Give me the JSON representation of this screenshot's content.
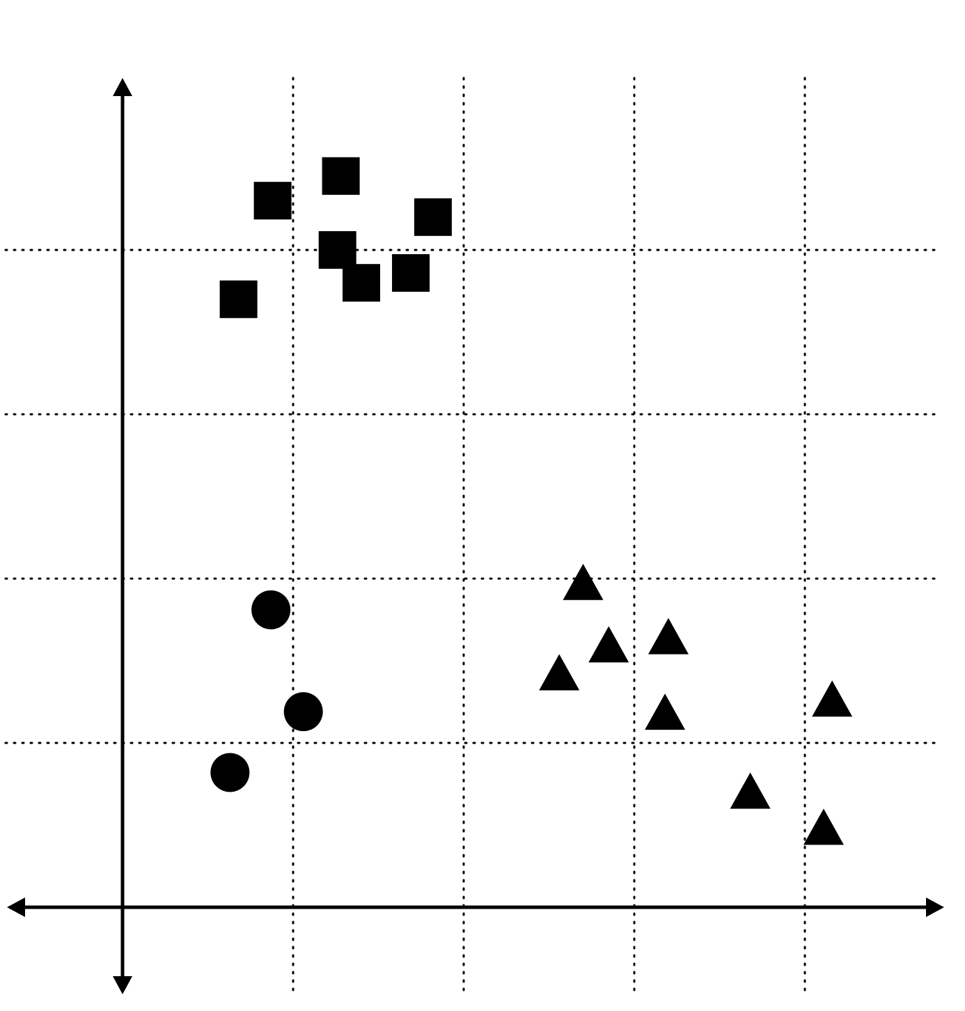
{
  "chart_data": {
    "type": "scatter",
    "title": "",
    "xlabel": "",
    "ylabel": "",
    "xlim": [
      0,
      4.8
    ],
    "ylim": [
      0,
      4.8
    ],
    "grid": true,
    "grid_style": "dotted",
    "x_gridlines": [
      1,
      2,
      3,
      4
    ],
    "y_gridlines": [
      1,
      2,
      3,
      4
    ],
    "axes_style": "arrows-both-ends",
    "colors": {
      "marks": "#000000",
      "grid": "#000000",
      "background": "#ffffff"
    },
    "series": [
      {
        "marker": "square",
        "points": [
          {
            "x": 0.88,
            "y": 4.3
          },
          {
            "x": 1.28,
            "y": 4.45
          },
          {
            "x": 1.26,
            "y": 4.0
          },
          {
            "x": 1.82,
            "y": 4.2
          },
          {
            "x": 0.68,
            "y": 3.7
          },
          {
            "x": 1.4,
            "y": 3.8
          },
          {
            "x": 1.69,
            "y": 3.86
          }
        ]
      },
      {
        "marker": "circle",
        "points": [
          {
            "x": 0.87,
            "y": 1.81
          },
          {
            "x": 1.06,
            "y": 1.19
          },
          {
            "x": 0.63,
            "y": 0.82
          }
        ]
      },
      {
        "marker": "triangle",
        "points": [
          {
            "x": 2.7,
            "y": 1.98
          },
          {
            "x": 2.85,
            "y": 1.6
          },
          {
            "x": 3.2,
            "y": 1.65
          },
          {
            "x": 2.56,
            "y": 1.43
          },
          {
            "x": 3.18,
            "y": 1.19
          },
          {
            "x": 4.16,
            "y": 1.27
          },
          {
            "x": 3.68,
            "y": 0.71
          },
          {
            "x": 4.11,
            "y": 0.49
          }
        ]
      }
    ]
  }
}
